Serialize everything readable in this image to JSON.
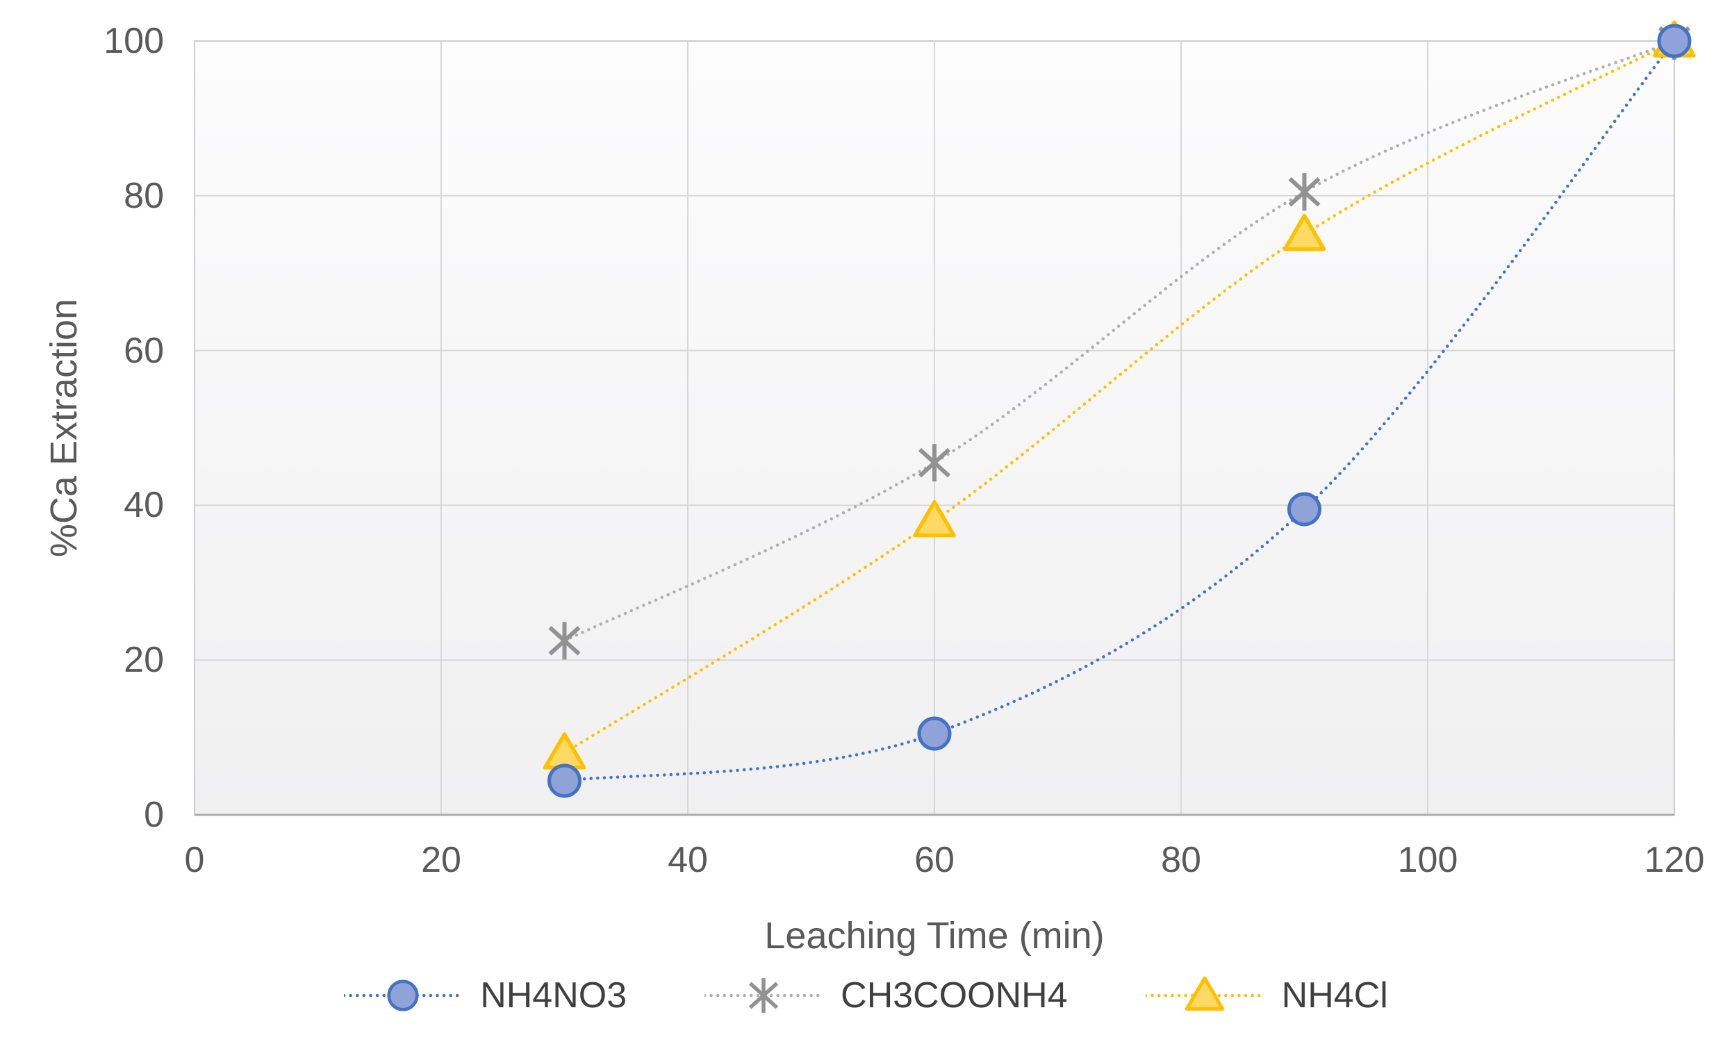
{
  "chart_data": {
    "type": "line",
    "title": "",
    "xlabel": "Leaching Time (min)",
    "ylabel": "%Ca Extraction",
    "x": [
      30,
      60,
      90,
      120
    ],
    "series": [
      {
        "name": "NH4NO3",
        "marker": "circle",
        "values": [
          4.4,
          10.5,
          39.5,
          100
        ],
        "line_color": "#4472C4",
        "marker_stroke": "#4472C4",
        "marker_fill": "#8FA3D8"
      },
      {
        "name": "CH3COONH4",
        "marker": "asterisk",
        "values": [
          22.5,
          45.5,
          80.5,
          100
        ],
        "line_color": "#AFAFAF",
        "marker_stroke": "#929292",
        "marker_fill": "none"
      },
      {
        "name": "NH4Cl",
        "marker": "triangle",
        "values": [
          8,
          38,
          75,
          100
        ],
        "line_color": "#FFC000",
        "marker_stroke": "#FFC000",
        "marker_fill": "#FFD966"
      }
    ],
    "x_ticks": [
      "0",
      "20",
      "40",
      "60",
      "80",
      "100",
      "120"
    ],
    "y_ticks": [
      "0",
      "20",
      "40",
      "60",
      "80",
      "100"
    ],
    "xlim": [
      0,
      120
    ],
    "ylim": [
      0,
      100
    ],
    "grid": true,
    "line_style": "dotted",
    "smooth": true,
    "legend_position": "bottom"
  },
  "styles": {
    "background": "#FFFFFF",
    "plot_bg_top": "#FCFCFD",
    "plot_bg_bottom": "#F0F0F1",
    "gridline_color": "#D8D8D8",
    "border_color": "#CDCDCD",
    "axis_line_color": "#ADADAD",
    "tick_text_color": "#595959",
    "axis_title_color": "#595959",
    "legend_text_color": "#3F3F3F"
  }
}
